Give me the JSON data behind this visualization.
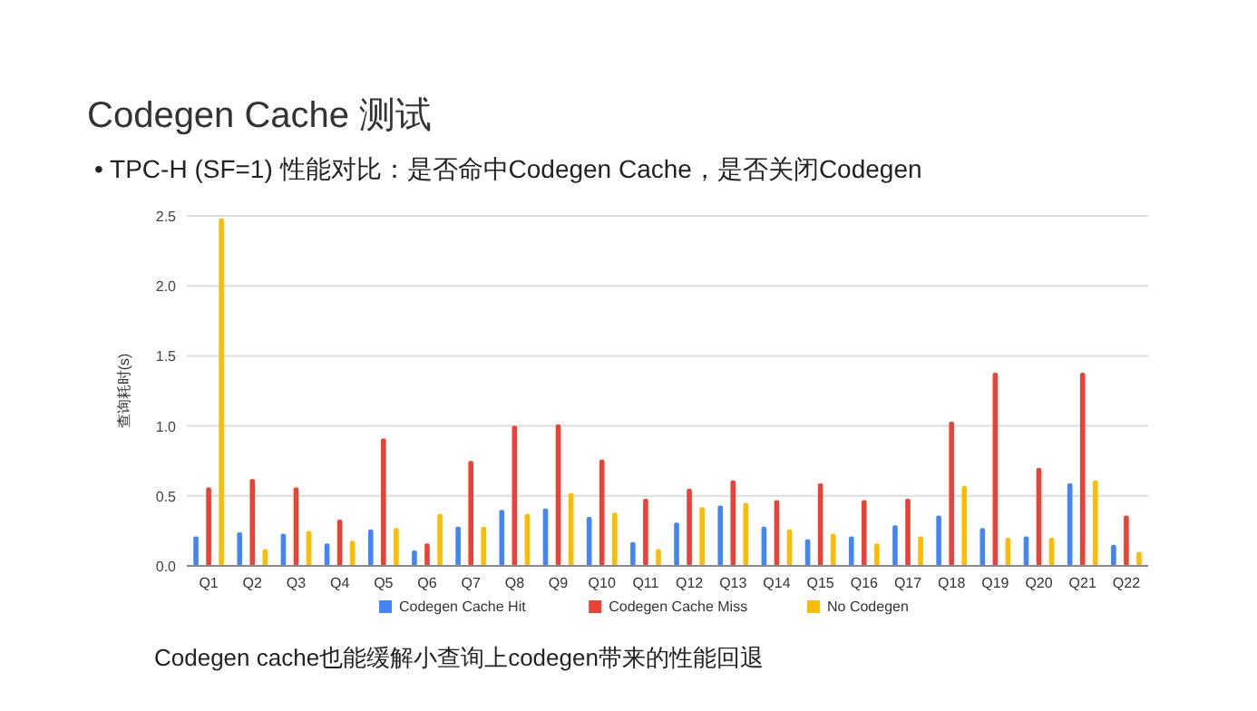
{
  "chart_data": {
    "type": "bar",
    "title": "Codegen Cache 测试",
    "subtitle": "• TPC-H (SF=1) 性能对比：是否命中Codegen Cache，是否关闭Codegen",
    "ylabel": "查询耗时(s)",
    "categories": [
      "Q1",
      "Q2",
      "Q3",
      "Q4",
      "Q5",
      "Q6",
      "Q7",
      "Q8",
      "Q9",
      "Q10",
      "Q11",
      "Q12",
      "Q13",
      "Q14",
      "Q15",
      "Q16",
      "Q17",
      "Q18",
      "Q19",
      "Q20",
      "Q21",
      "Q22"
    ],
    "series": [
      {
        "name": "Codegen Cache Hit",
        "color": "#4285f4",
        "values": [
          0.21,
          0.24,
          0.23,
          0.16,
          0.26,
          0.11,
          0.28,
          0.4,
          0.41,
          0.35,
          0.17,
          0.31,
          0.43,
          0.28,
          0.19,
          0.21,
          0.29,
          0.36,
          0.27,
          0.21,
          0.59,
          0.15
        ]
      },
      {
        "name": "Codegen Cache Miss",
        "color": "#ea4335",
        "values": [
          0.56,
          0.62,
          0.56,
          0.33,
          0.91,
          0.16,
          0.75,
          1.0,
          1.01,
          0.76,
          0.48,
          0.55,
          0.61,
          0.47,
          0.59,
          0.47,
          0.48,
          1.03,
          1.38,
          0.7,
          1.38,
          0.36
        ]
      },
      {
        "name": "No Codegen",
        "color": "#fbbc04",
        "values": [
          2.48,
          0.12,
          0.25,
          0.18,
          0.27,
          0.37,
          0.28,
          0.37,
          0.52,
          0.38,
          0.12,
          0.42,
          0.45,
          0.26,
          0.23,
          0.16,
          0.21,
          0.57,
          0.2,
          0.2,
          0.61,
          0.1
        ]
      }
    ],
    "ylim": [
      0,
      2.5
    ],
    "yticks": [
      {
        "value": 0,
        "label": "0.0"
      },
      0.5,
      {
        "value": 1,
        "label": "1.0"
      },
      1.5,
      {
        "value": 2,
        "label": "2.0"
      },
      2.5
    ],
    "grid": "y",
    "legend": "bottom",
    "annotations": [
      "Codegen cache也能缓解小查询上codegen带来的性能回退"
    ]
  }
}
